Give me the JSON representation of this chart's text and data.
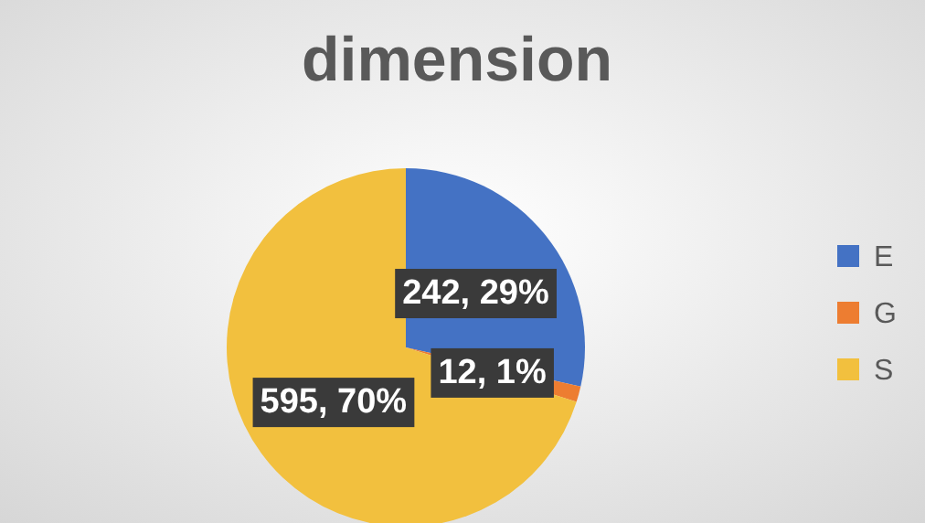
{
  "chart_data": {
    "type": "pie",
    "title": "dimension",
    "categories": [
      "E",
      "G",
      "S"
    ],
    "values": [
      242,
      12,
      595
    ],
    "value_labels": [
      "242, 29%",
      "12, 1%",
      "595, 70%"
    ],
    "colors": [
      "#4472c4",
      "#ed7d31",
      "#f2c03e"
    ],
    "legend": "right"
  }
}
